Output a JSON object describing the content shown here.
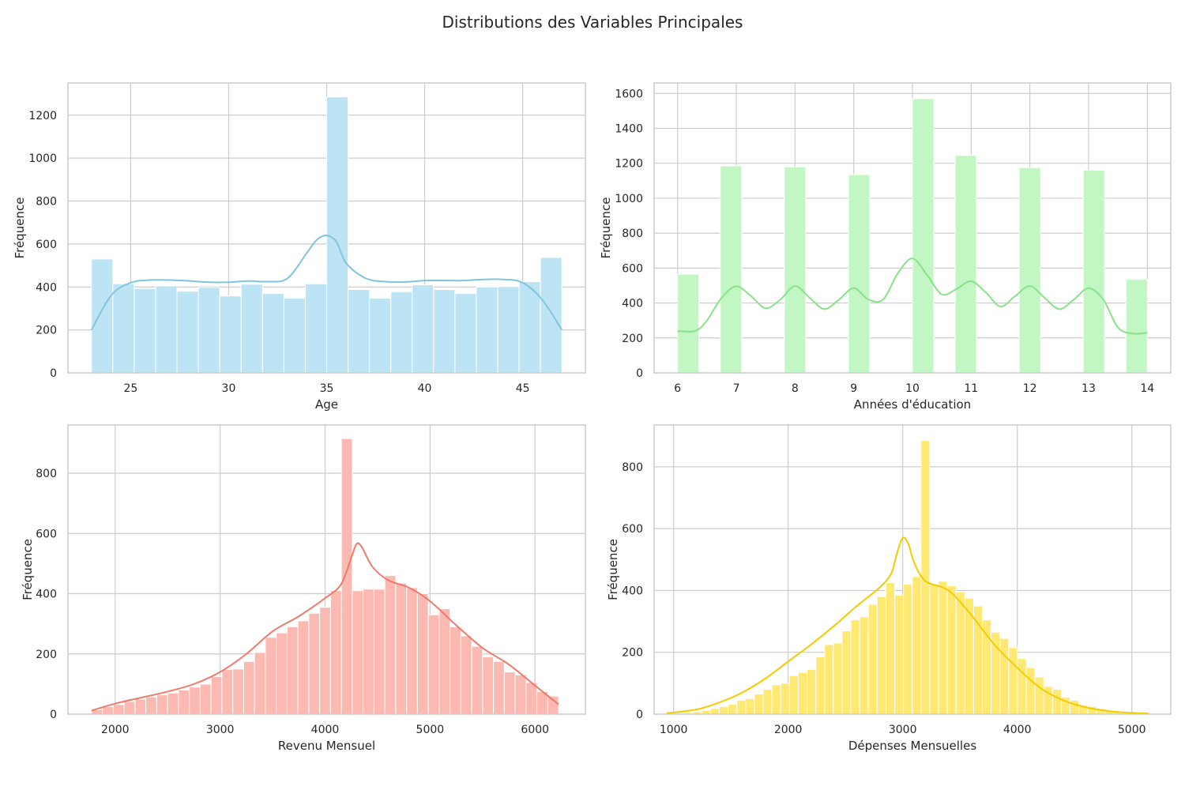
{
  "figure": {
    "title": "Distributions des Variables Principales"
  },
  "chart_data": [
    {
      "type": "bar",
      "subtype": "histogram-kde",
      "title": "",
      "xlabel": "Age",
      "ylabel": "Fréquence",
      "color": "#87CEEB",
      "xlim": [
        21.8,
        48.2
      ],
      "ylim": [
        0,
        1350
      ],
      "xticks": [
        25,
        30,
        35,
        40,
        45
      ],
      "yticks": [
        0,
        200,
        400,
        600,
        800,
        1000,
        1200
      ],
      "grid": true,
      "bins": {
        "start": 23,
        "end": 47,
        "counts": [
          530,
          415,
          393,
          405,
          380,
          398,
          358,
          413,
          370,
          348,
          415,
          1285,
          388,
          348,
          378,
          410,
          388,
          370,
          400,
          402,
          425,
          537
        ]
      },
      "kde": {
        "x": [
          23,
          24,
          25,
          26,
          27,
          28,
          29,
          30,
          31,
          32,
          33,
          34,
          34.5,
          35,
          35.5,
          36,
          37,
          38,
          39,
          40,
          41,
          42,
          43,
          44,
          45,
          46,
          47
        ],
        "y": [
          200,
          360,
          420,
          432,
          432,
          428,
          422,
          422,
          428,
          425,
          440,
          560,
          620,
          640,
          610,
          510,
          440,
          425,
          423,
          430,
          430,
          430,
          435,
          435,
          420,
          340,
          200
        ]
      }
    },
    {
      "type": "bar",
      "subtype": "histogram-kde",
      "title": "",
      "xlabel": "Années d'éducation",
      "ylabel": "Fréquence",
      "color": "#90EE90",
      "xlim": [
        5.6,
        14.4
      ],
      "ylim": [
        0,
        1660
      ],
      "xticks": [
        6,
        7,
        8,
        9,
        10,
        11,
        12,
        13,
        14
      ],
      "yticks": [
        0,
        200,
        400,
        600,
        800,
        1000,
        1200,
        1400,
        1600
      ],
      "grid": true,
      "bins": {
        "start": 6,
        "end": 14,
        "counts": [
          565,
          0,
          1185,
          0,
          0,
          1180,
          0,
          0,
          1135,
          0,
          0,
          1570,
          0,
          1245,
          0,
          0,
          1175,
          0,
          0,
          1160,
          0,
          535
        ]
      },
      "kde": {
        "x": [
          6,
          6.3,
          6.5,
          6.75,
          7,
          7.25,
          7.5,
          7.75,
          8,
          8.25,
          8.5,
          8.75,
          9,
          9.25,
          9.5,
          9.75,
          10,
          10.25,
          10.5,
          10.75,
          11,
          11.25,
          11.5,
          11.75,
          12,
          12.25,
          12.5,
          12.75,
          13,
          13.25,
          13.5,
          13.75,
          14
        ],
        "y": [
          240,
          240,
          300,
          430,
          495,
          440,
          370,
          420,
          497,
          430,
          365,
          420,
          485,
          420,
          420,
          570,
          655,
          560,
          450,
          480,
          525,
          460,
          380,
          440,
          497,
          430,
          365,
          420,
          485,
          420,
          260,
          225,
          230
        ]
      }
    },
    {
      "type": "bar",
      "subtype": "histogram-kde",
      "title": "",
      "xlabel": "Revenu Mensuel",
      "ylabel": "Fréquence",
      "color": "#FA8072",
      "xlim": [
        1550,
        6480
      ],
      "ylim": [
        0,
        960
      ],
      "xticks": [
        2000,
        3000,
        4000,
        5000,
        6000
      ],
      "yticks": [
        0,
        200,
        400,
        600,
        800
      ],
      "grid": true,
      "bins": {
        "start": 1775,
        "end": 6225,
        "counts": [
          15,
          25,
          32,
          42,
          50,
          57,
          64,
          70,
          80,
          90,
          100,
          125,
          148,
          150,
          175,
          205,
          255,
          270,
          290,
          310,
          335,
          355,
          410,
          915,
          410,
          415,
          415,
          460,
          435,
          420,
          400,
          330,
          350,
          290,
          260,
          225,
          190,
          175,
          140,
          130,
          105,
          75,
          60
        ]
      },
      "kde": {
        "x": [
          1775,
          2000,
          2250,
          2500,
          2750,
          3000,
          3250,
          3500,
          3750,
          4000,
          4150,
          4250,
          4300,
          4350,
          4450,
          4600,
          4800,
          5000,
          5250,
          5500,
          5750,
          6000,
          6225
        ],
        "y": [
          12,
          35,
          55,
          75,
          100,
          140,
          200,
          275,
          325,
          385,
          430,
          520,
          565,
          555,
          490,
          445,
          420,
          375,
          295,
          220,
          165,
          95,
          32
        ]
      }
    },
    {
      "type": "bar",
      "subtype": "histogram-kde",
      "title": "",
      "xlabel": "Dépenses Mensuelles",
      "ylabel": "Fréquence",
      "color": "#FFD700",
      "xlim": [
        830,
        5340
      ],
      "ylim": [
        0,
        935
      ],
      "xticks": [
        1000,
        2000,
        3000,
        4000,
        5000
      ],
      "yticks": [
        0,
        200,
        400,
        600,
        800
      ],
      "grid": true,
      "bins": {
        "start": 940,
        "end": 5150,
        "counts": [
          2,
          4,
          5,
          8,
          12,
          18,
          25,
          32,
          45,
          50,
          65,
          80,
          95,
          100,
          125,
          135,
          145,
          185,
          225,
          230,
          270,
          305,
          315,
          355,
          380,
          425,
          385,
          420,
          445,
          885,
          420,
          430,
          415,
          395,
          375,
          350,
          305,
          265,
          245,
          215,
          180,
          150,
          120,
          90,
          80,
          55,
          45,
          30,
          25,
          18,
          12,
          8,
          5,
          3,
          2
        ]
      },
      "kde": {
        "x": [
          940,
          1200,
          1400,
          1600,
          1800,
          2000,
          2200,
          2400,
          2600,
          2800,
          2900,
          2950,
          3000,
          3050,
          3100,
          3200,
          3400,
          3600,
          3800,
          4000,
          4200,
          4400,
          4600,
          4800,
          5000,
          5150
        ],
        "y": [
          3,
          15,
          38,
          70,
          115,
          170,
          225,
          285,
          350,
          410,
          455,
          520,
          570,
          550,
          490,
          430,
          400,
          320,
          225,
          150,
          85,
          45,
          22,
          10,
          4,
          2
        ]
      }
    }
  ]
}
